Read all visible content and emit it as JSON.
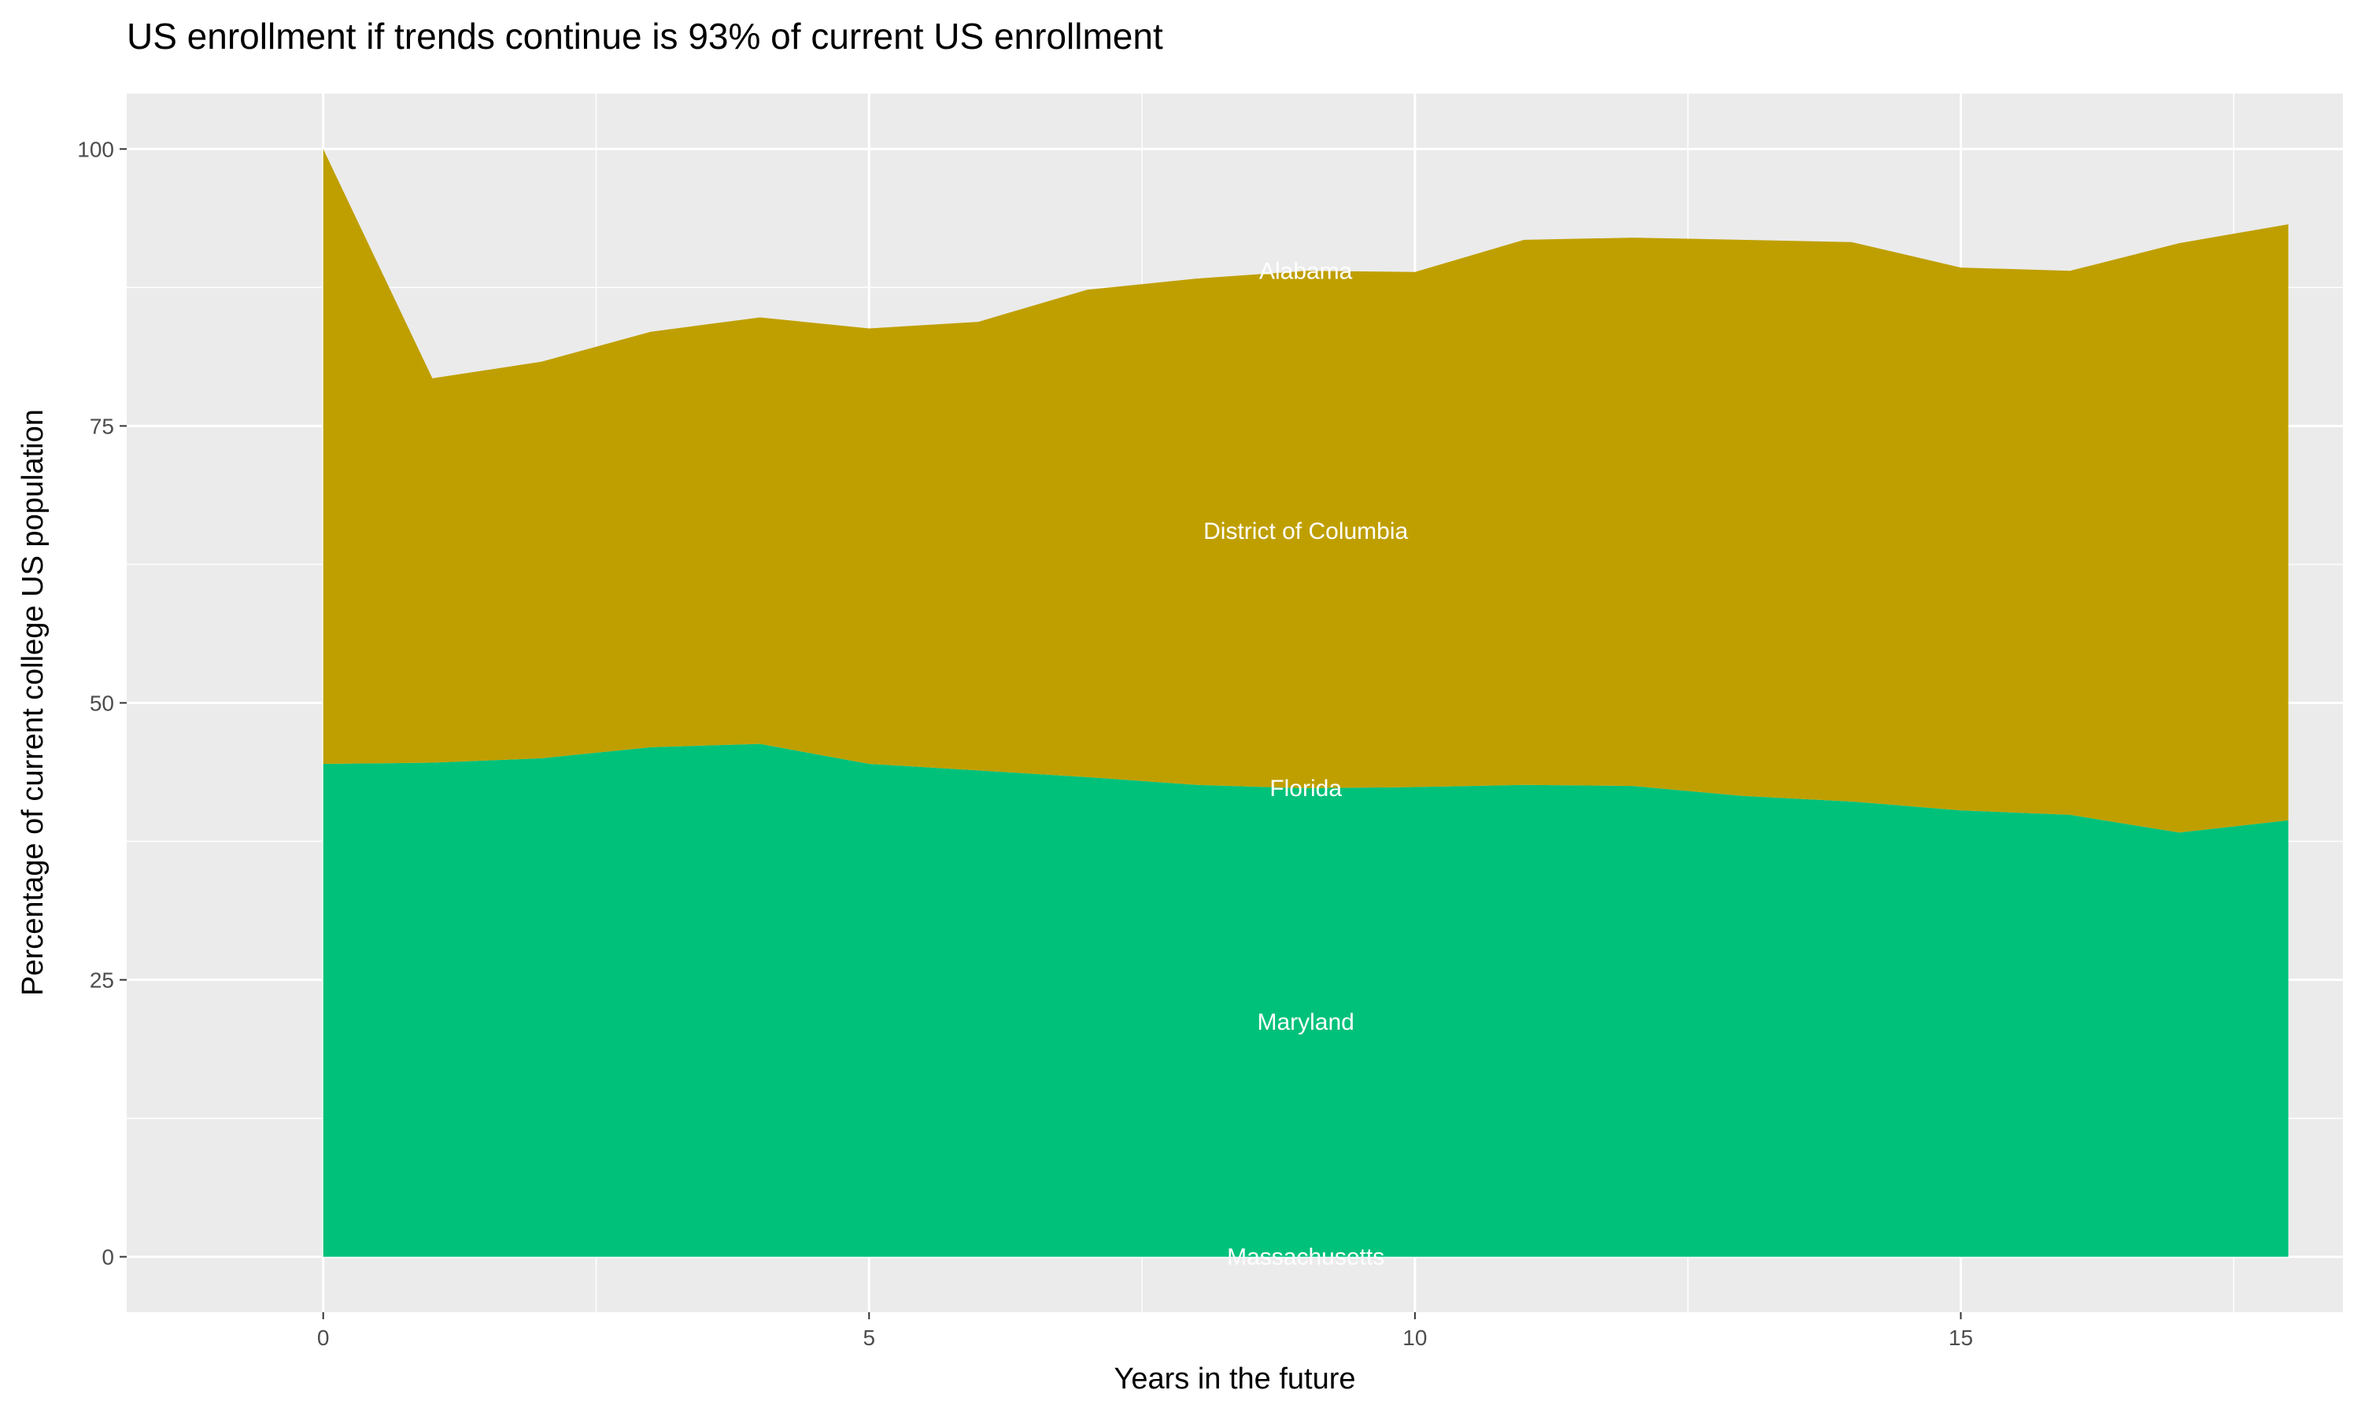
{
  "chart_data": {
    "type": "area",
    "stacked": true,
    "title": "US enrollment if trends continue is 93% of current US enrollment",
    "xlabel": "Years in the future",
    "ylabel": "Percentage of current college US population",
    "xlim": [
      -1.8,
      18.5
    ],
    "ylim": [
      -5,
      105
    ],
    "x_ticks": [
      0,
      5,
      10,
      15
    ],
    "y_ticks": [
      0,
      25,
      50,
      75,
      100
    ],
    "grid": true,
    "legend": "none",
    "x": [
      0,
      1,
      2,
      3,
      4,
      5,
      6,
      7,
      8,
      9,
      10,
      11,
      12,
      13,
      14,
      15,
      16,
      17,
      18
    ],
    "series": [
      {
        "name": "Alabama",
        "color": "#BF9F00",
        "values": [
          0,
          0,
          0,
          0,
          0,
          0,
          0,
          0,
          0,
          0,
          0,
          0,
          0,
          0,
          0,
          0,
          0,
          0,
          0
        ]
      },
      {
        "name": "District of Columbia",
        "color": "#BF9F00",
        "values": [
          55.5,
          34.7,
          35.8,
          37.5,
          38.5,
          39.3,
          40.5,
          44.0,
          45.7,
          46.7,
          46.5,
          49.2,
          49.5,
          50.2,
          50.5,
          49.0,
          49.1,
          53.2,
          53.8
        ]
      },
      {
        "name": "Florida",
        "color": "#00C17A",
        "values": [
          0,
          0,
          0,
          0,
          0,
          0,
          0,
          0,
          0,
          0,
          0,
          0,
          0,
          0,
          0,
          0,
          0,
          0,
          0
        ]
      },
      {
        "name": "Maryland",
        "color": "#00C17A",
        "values": [
          44.5,
          44.6,
          45.0,
          46.0,
          46.3,
          44.5,
          43.9,
          43.3,
          42.6,
          42.3,
          42.4,
          42.6,
          42.5,
          41.6,
          41.1,
          40.3,
          39.9,
          38.3,
          39.4
        ]
      },
      {
        "name": "Massachusetts",
        "color": "#00C17A",
        "values": [
          0,
          0,
          0,
          0,
          0,
          0,
          0,
          0,
          0,
          0,
          0,
          0,
          0,
          0,
          0,
          0,
          0,
          0,
          0
        ]
      }
    ],
    "annotations": [
      {
        "text": "Alabama",
        "x": 9,
        "y": 89
      },
      {
        "text": "District of Columbia",
        "x": 9,
        "y": 65.5
      },
      {
        "text": "Florida",
        "x": 9,
        "y": 42.3
      },
      {
        "text": "Maryland",
        "x": 9,
        "y": 21.2
      },
      {
        "text": "Massachusetts",
        "x": 9,
        "y": 0
      }
    ],
    "panel_background": "#EBEBEB",
    "grid_color": "#FFFFFF"
  }
}
